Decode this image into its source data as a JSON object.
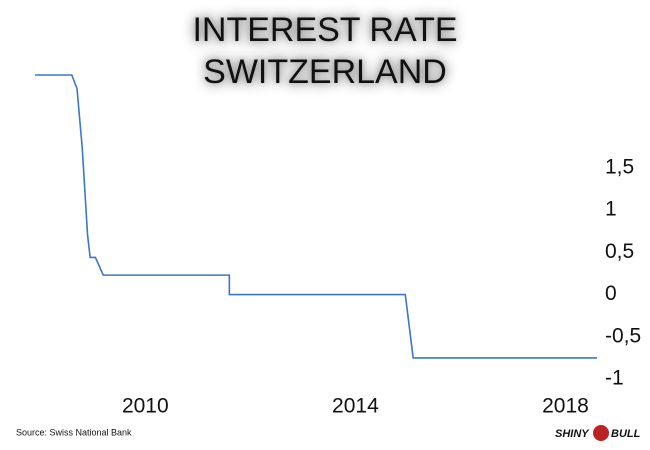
{
  "chart_data": {
    "type": "line",
    "title": [
      "INTEREST RATE",
      "SWITZERLAND"
    ],
    "source": "Source: Swiss National Bank",
    "logo": [
      "SHINY",
      "BULL"
    ],
    "x": [
      2007.9,
      2008.6,
      2008.7,
      2008.8,
      2008.9,
      2008.95,
      2009.05,
      2009.2,
      2011.6,
      2011.6,
      2014.95,
      2015.1,
      2018.6
    ],
    "series": [
      {
        "color": "#3a78c4",
        "values": [
          2.6,
          2.6,
          2.44,
          1.73,
          0.71,
          0.44,
          0.44,
          0.23,
          0.23,
          0,
          0,
          -0.75,
          -0.75
        ]
      }
    ],
    "xlim": [
      2007.9,
      2018.6
    ],
    "xticks": [
      2010,
      2014,
      2018
    ],
    "ylim": [
      -1,
      2.6
    ],
    "yticks": [
      {
        "value": 1.5,
        "label": "1,5"
      },
      1,
      {
        "value": 0.5,
        "label": "0,5"
      },
      0,
      {
        "value": -0.5,
        "label": "-0,5"
      },
      -1
    ],
    "yaxis_side": "right",
    "grid": false
  }
}
